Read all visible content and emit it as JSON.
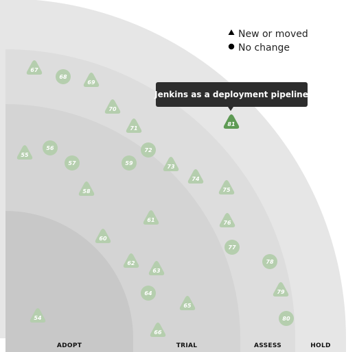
{
  "quadrant": {
    "rings": [
      {
        "name": "ADOPT"
      },
      {
        "name": "TRIAL"
      },
      {
        "name": "ASSESS"
      },
      {
        "name": "HOLD"
      }
    ]
  },
  "legend": {
    "new_or_moved": "New or moved",
    "no_change": "No change"
  },
  "tooltip": {
    "text": "Jenkins as a deployment pipeline",
    "blip": 81
  },
  "blips": [
    {
      "id": 54,
      "shape": "triangle"
    },
    {
      "id": 55,
      "shape": "triangle"
    },
    {
      "id": 56,
      "shape": "circle"
    },
    {
      "id": 57,
      "shape": "circle"
    },
    {
      "id": 58,
      "shape": "triangle"
    },
    {
      "id": 59,
      "shape": "circle"
    },
    {
      "id": 60,
      "shape": "triangle"
    },
    {
      "id": 61,
      "shape": "triangle"
    },
    {
      "id": 62,
      "shape": "triangle"
    },
    {
      "id": 63,
      "shape": "triangle"
    },
    {
      "id": 64,
      "shape": "circle"
    },
    {
      "id": 65,
      "shape": "triangle"
    },
    {
      "id": 66,
      "shape": "triangle"
    },
    {
      "id": 67,
      "shape": "triangle"
    },
    {
      "id": 68,
      "shape": "circle"
    },
    {
      "id": 69,
      "shape": "triangle"
    },
    {
      "id": 70,
      "shape": "triangle"
    },
    {
      "id": 71,
      "shape": "triangle"
    },
    {
      "id": 72,
      "shape": "circle"
    },
    {
      "id": 73,
      "shape": "triangle"
    },
    {
      "id": 74,
      "shape": "triangle"
    },
    {
      "id": 75,
      "shape": "triangle"
    },
    {
      "id": 76,
      "shape": "triangle"
    },
    {
      "id": 77,
      "shape": "circle"
    },
    {
      "id": 78,
      "shape": "circle"
    },
    {
      "id": 79,
      "shape": "triangle"
    },
    {
      "id": 80,
      "shape": "circle"
    },
    {
      "id": 81,
      "shape": "triangle"
    }
  ],
  "colors": {
    "ring_adopt": "#c8c8c8",
    "ring_trial": "#d4d4d4",
    "ring_assess": "#dddddd",
    "ring_hold": "#e6e6e6",
    "page_bg": "#ffffff",
    "blip": "#b5ceae",
    "blip_highlight": "#5e9a54",
    "tooltip_bg": "#2d2d2d"
  }
}
